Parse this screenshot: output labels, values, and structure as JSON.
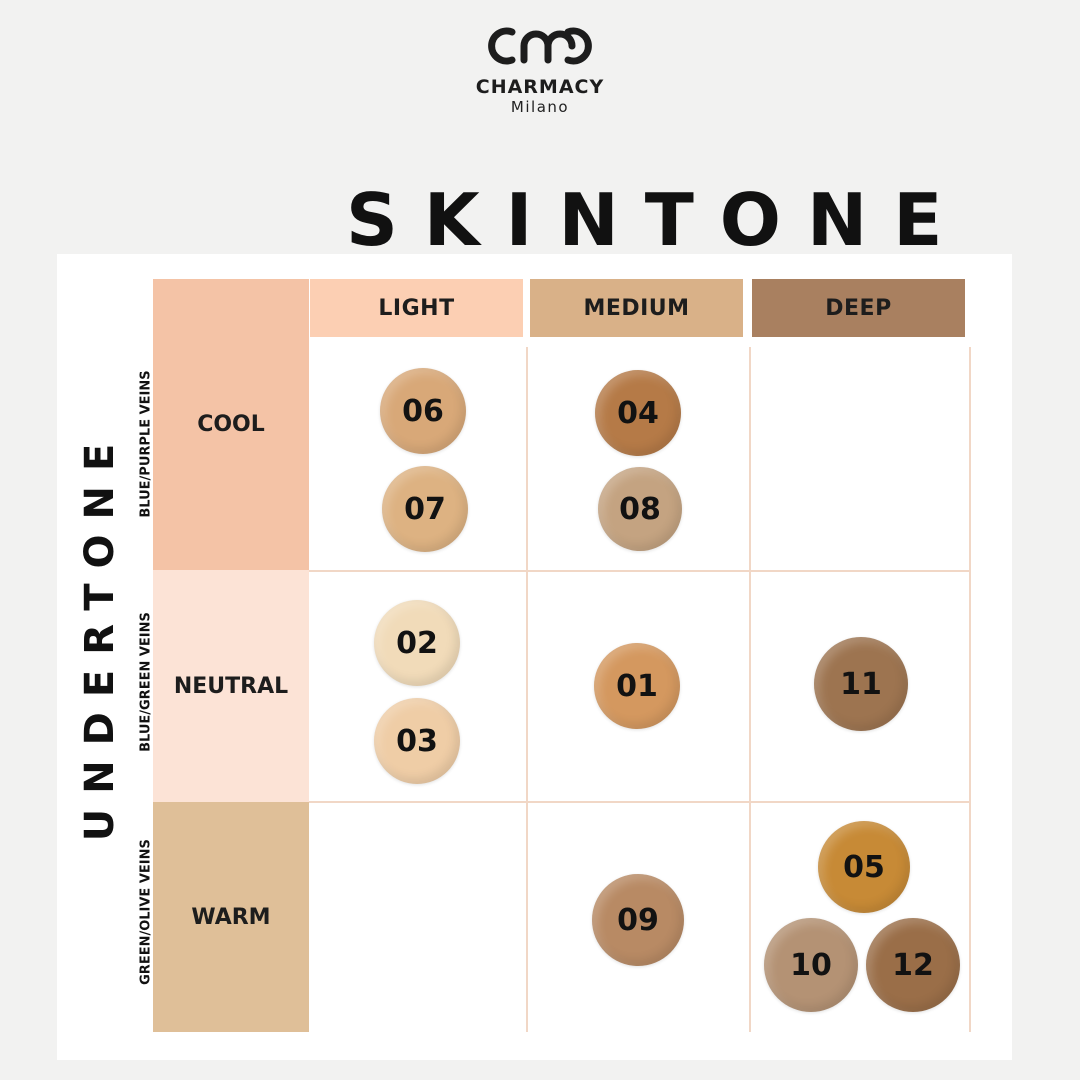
{
  "brand": {
    "name": "CHARMACY",
    "subtitle": "Milano"
  },
  "title": "SKINTONE",
  "axis_label": "UNDERTONE",
  "columns": [
    {
      "label": "LIGHT",
      "color": "#fccfb3"
    },
    {
      "label": "MEDIUM",
      "color": "#d9b188"
    },
    {
      "label": "DEEP",
      "color": "#a98060"
    }
  ],
  "rows": [
    {
      "label": "COOL",
      "veins": "BLUE/PURPLE VEINS",
      "color": "#f4c3a6"
    },
    {
      "label": "NEUTRAL",
      "veins": "BLUE/GREEN VEINS",
      "color": "#fce3d6"
    },
    {
      "label": "WARM",
      "veins": "GREEN/OLIVE VEINS",
      "color": "#dfbf98"
    }
  ],
  "shades": [
    {
      "code": "06",
      "row": "COOL",
      "column": "LIGHT",
      "color": "#d8a878"
    },
    {
      "code": "07",
      "row": "COOL",
      "column": "LIGHT",
      "color": "#ddb282"
    },
    {
      "code": "04",
      "row": "COOL",
      "column": "MEDIUM",
      "color": "#b57a47"
    },
    {
      "code": "08",
      "row": "COOL",
      "column": "MEDIUM",
      "color": "#c4a381"
    },
    {
      "code": "02",
      "row": "NEUTRAL",
      "column": "LIGHT",
      "color": "#f1dbb9"
    },
    {
      "code": "03",
      "row": "NEUTRAL",
      "column": "LIGHT",
      "color": "#efcda6"
    },
    {
      "code": "01",
      "row": "NEUTRAL",
      "column": "MEDIUM",
      "color": "#d4985f"
    },
    {
      "code": "11",
      "row": "NEUTRAL",
      "column": "DEEP",
      "color": "#9d7450"
    },
    {
      "code": "09",
      "row": "WARM",
      "column": "MEDIUM",
      "color": "#b88a64"
    },
    {
      "code": "05",
      "row": "WARM",
      "column": "DEEP",
      "color": "#c78a36"
    },
    {
      "code": "10",
      "row": "WARM",
      "column": "DEEP",
      "color": "#b49274"
    },
    {
      "code": "12",
      "row": "WARM",
      "column": "DEEP",
      "color": "#9a6e48"
    }
  ]
}
